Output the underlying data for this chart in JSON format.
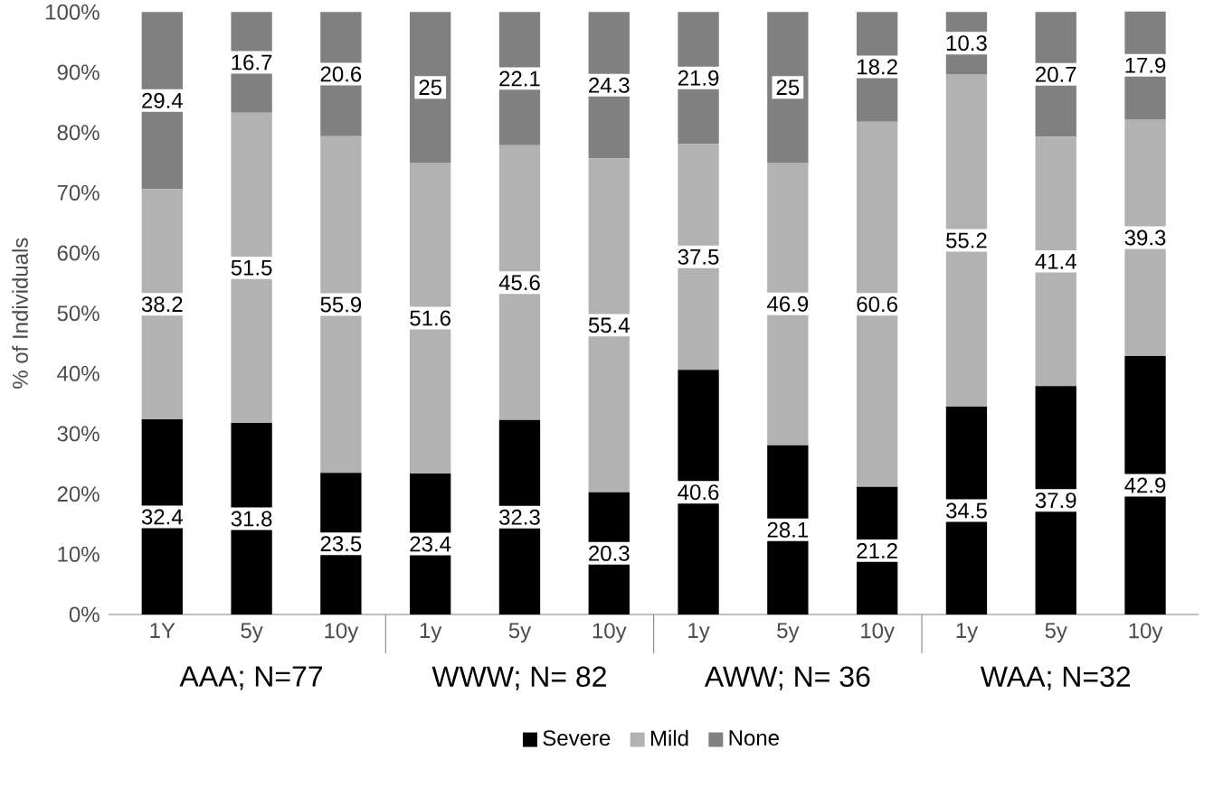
{
  "chart_data": {
    "type": "bar",
    "stacked": true,
    "ylabel": "% of Individuals",
    "categories": [
      "1Y",
      "5y",
      "10y",
      "1y",
      "5y",
      "10y",
      "1y",
      "5y",
      "10y",
      "1y",
      "5y",
      "10y"
    ],
    "series": [
      {
        "name": "Severe",
        "color": "#000000",
        "values": [
          32.4,
          31.8,
          23.5,
          23.4,
          32.3,
          20.3,
          40.6,
          28.1,
          21.2,
          34.5,
          37.9,
          42.9
        ]
      },
      {
        "name": "Mild",
        "color": "#b2b2b2",
        "values": [
          38.2,
          51.5,
          55.9,
          51.6,
          45.6,
          55.4,
          37.5,
          46.9,
          60.6,
          55.2,
          41.4,
          39.3
        ]
      },
      {
        "name": "None",
        "color": "#808080",
        "values": [
          29.4,
          16.7,
          20.6,
          25,
          22.1,
          24.3,
          21.9,
          25,
          18.2,
          10.3,
          20.7,
          17.9
        ]
      }
    ],
    "ylim": [
      0,
      100
    ],
    "yticks": [
      {
        "value": 0,
        "label": "0%"
      },
      {
        "value": 10,
        "label": "10%"
      },
      {
        "value": 20,
        "label": "20%"
      },
      {
        "value": 30,
        "label": "30%"
      },
      {
        "value": 40,
        "label": "40%"
      },
      {
        "value": 50,
        "label": "50%"
      },
      {
        "value": 60,
        "label": "60%"
      },
      {
        "value": 70,
        "label": "70%"
      },
      {
        "value": 80,
        "label": "80%"
      },
      {
        "value": 90,
        "label": "90%"
      },
      {
        "value": 100,
        "label": "100%"
      }
    ],
    "annotations": [
      "AAA; N=77",
      "WWW; N= 82",
      "AWW; N= 36",
      "WAA; N=32"
    ],
    "data_labels": true,
    "legend": "bottom",
    "grid": false
  }
}
